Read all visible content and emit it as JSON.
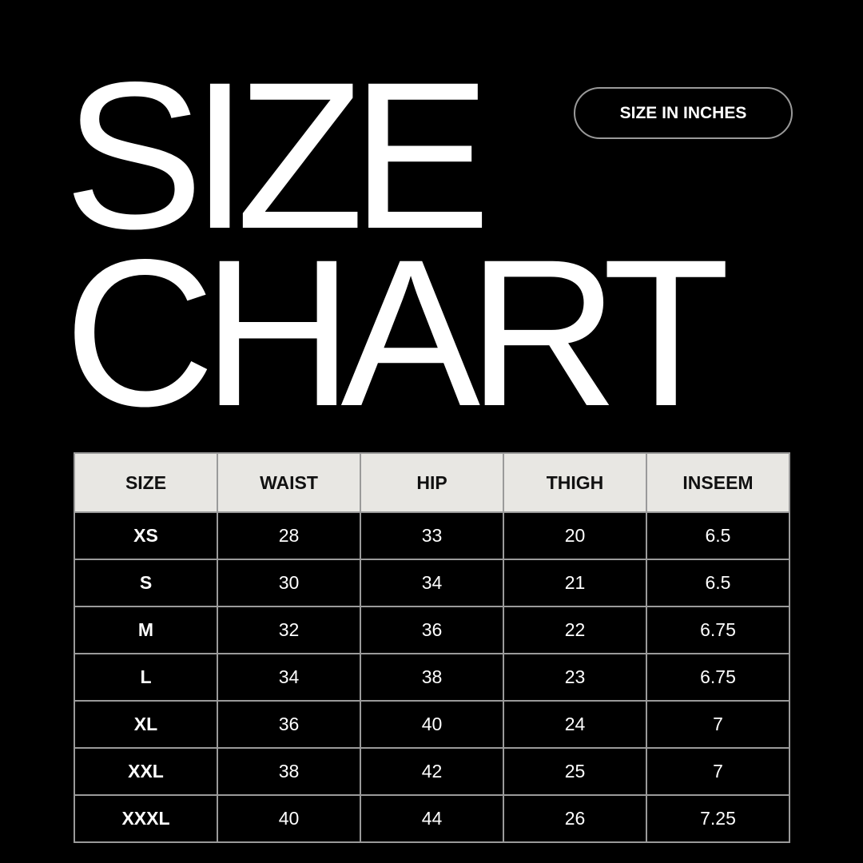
{
  "title": {
    "line1": "SIZE",
    "line2": "CHART"
  },
  "unit_badge": "SIZE IN INCHES",
  "table": {
    "headers": [
      "SIZE",
      "WAIST",
      "HIP",
      "THIGH",
      "INSEEM"
    ],
    "rows": [
      [
        "XS",
        "28",
        "33",
        "20",
        "6.5"
      ],
      [
        "S",
        "30",
        "34",
        "21",
        "6.5"
      ],
      [
        "M",
        "32",
        "36",
        "22",
        "6.75"
      ],
      [
        "L",
        "34",
        "38",
        "23",
        "6.75"
      ],
      [
        "XL",
        "36",
        "40",
        "24",
        "7"
      ],
      [
        "XXL",
        "38",
        "42",
        "25",
        "7"
      ],
      [
        "XXXL",
        "40",
        "44",
        "26",
        "7.25"
      ]
    ]
  },
  "colors": {
    "background": "#000000",
    "header_bg": "#e8e7e3",
    "border": "#9a9a9a",
    "text": "#ffffff"
  }
}
